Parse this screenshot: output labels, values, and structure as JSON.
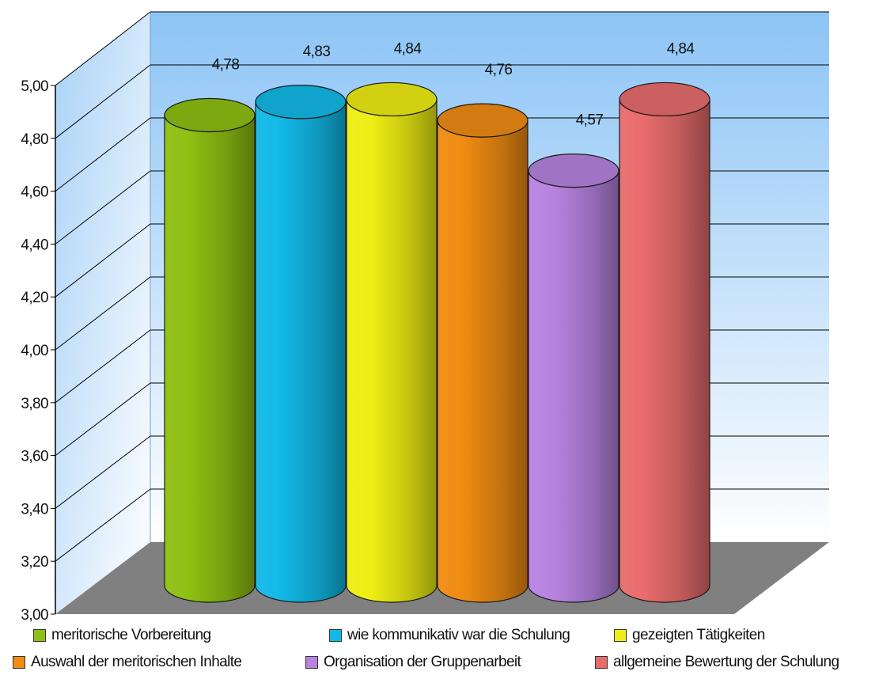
{
  "chart_data": {
    "type": "bar",
    "style": "3d-cylinder",
    "categories": [
      "meritorische Vorbereitung",
      "wie kommunikativ war die Schulung",
      "gezeigten Tätigkeiten",
      "Auswahl der meritorischen Inhalte",
      "Organisation der Gruppenarbeit",
      "allgemeine Bewertung der Schulung"
    ],
    "values": [
      4.78,
      4.83,
      4.84,
      4.76,
      4.57,
      4.84
    ],
    "value_labels": [
      "4,78",
      "4,83",
      "4,84",
      "4,76",
      "4,57",
      "4,84"
    ],
    "colors": [
      "#8fbf12",
      "#12b9e8",
      "#eeee14",
      "#f08c12",
      "#b783e0",
      "#e86c6c"
    ],
    "ylim": [
      3.0,
      5.0
    ],
    "yticks": [
      "3,00",
      "3,20",
      "3,40",
      "3,60",
      "3,80",
      "4,00",
      "4,20",
      "4,40",
      "4,60",
      "4,80",
      "5,00"
    ],
    "grid": true,
    "legend_position": "bottom",
    "title": "",
    "xlabel": "",
    "ylabel": ""
  }
}
